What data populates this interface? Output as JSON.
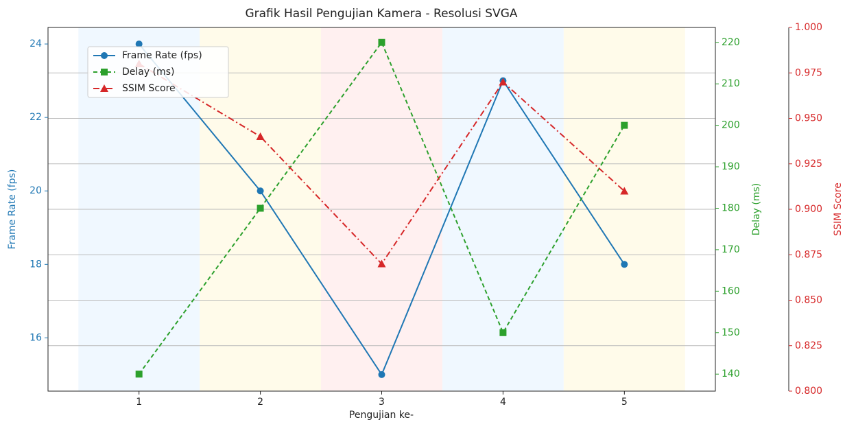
{
  "chart_data": {
    "type": "line",
    "title": "Grafik Hasil Pengujian Kamera - Resolusi SVGA",
    "xlabel": "Pengujian ke-",
    "ylabel": "Frame Rate (fps)",
    "y2label": "Delay (ms)",
    "y3label": "SSIM Score",
    "x": [
      1,
      2,
      3,
      4,
      5
    ],
    "xlim": [
      0.25,
      5.75
    ],
    "xticks": [
      1,
      2,
      3,
      4,
      5
    ],
    "ylim": [
      14.55,
      24.45
    ],
    "yticks": [
      16,
      18,
      20,
      22,
      24
    ],
    "y2lim": [
      135.9,
      223.6
    ],
    "y2ticks": [
      140,
      150,
      160,
      170,
      180,
      190,
      200,
      210,
      220
    ],
    "y3lim": [
      0.8,
      1.0
    ],
    "y3ticks": [
      {
        "value": 0.8,
        "label": "0.800"
      },
      {
        "value": 0.825,
        "label": "0.825"
      },
      {
        "value": 0.85,
        "label": "0.850"
      },
      {
        "value": 0.875,
        "label": "0.875"
      },
      {
        "value": 0.9,
        "label": "0.900"
      },
      {
        "value": 0.925,
        "label": "0.925"
      },
      {
        "value": 0.95,
        "label": "0.950"
      },
      {
        "value": 0.975,
        "label": "0.975"
      },
      {
        "value": 1.0,
        "label": "1.000"
      }
    ],
    "grid": true,
    "legend": "upper left",
    "band_colors": [
      "#f0f8ff",
      "#fffbea",
      "#fff0f0",
      "#f0f8ff",
      "#fffbea"
    ],
    "series": [
      {
        "name": "Frame Rate (fps)",
        "color": "#1f77b4",
        "axis": "y",
        "marker": "circle",
        "linestyle": "solid",
        "values": [
          24,
          20,
          15,
          23,
          18
        ]
      },
      {
        "name": "Delay (ms)",
        "color": "#2ca02c",
        "axis": "y2",
        "marker": "square",
        "linestyle": "dashed",
        "values": [
          140,
          180,
          220,
          150,
          200
        ]
      },
      {
        "name": "SSIM Score",
        "color": "#d62728",
        "axis": "y3",
        "marker": "triangle",
        "linestyle": "dashdot",
        "values": [
          0.98,
          0.94,
          0.87,
          0.97,
          0.91
        ]
      }
    ]
  }
}
